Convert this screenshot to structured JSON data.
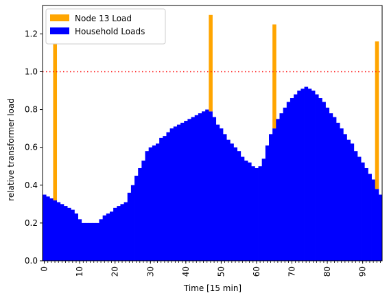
{
  "chart_data": {
    "type": "bar",
    "stacked": true,
    "title": "",
    "xlabel": "Time [15 min]",
    "ylabel": "relative transformer load",
    "xlim": [
      -0.5,
      95.5
    ],
    "ylim": [
      0.0,
      1.35
    ],
    "x": [
      0,
      1,
      2,
      3,
      4,
      5,
      6,
      7,
      8,
      9,
      10,
      11,
      12,
      13,
      14,
      15,
      16,
      17,
      18,
      19,
      20,
      21,
      22,
      23,
      24,
      25,
      26,
      27,
      28,
      29,
      30,
      31,
      32,
      33,
      34,
      35,
      36,
      37,
      38,
      39,
      40,
      41,
      42,
      43,
      44,
      45,
      46,
      47,
      48,
      49,
      50,
      51,
      52,
      53,
      54,
      55,
      56,
      57,
      58,
      59,
      60,
      61,
      62,
      63,
      64,
      65,
      66,
      67,
      68,
      69,
      70,
      71,
      72,
      73,
      74,
      75,
      76,
      77,
      78,
      79,
      80,
      81,
      82,
      83,
      84,
      85,
      86,
      87,
      88,
      89,
      90,
      91,
      92,
      93,
      94,
      95
    ],
    "xticks": [
      0,
      10,
      20,
      30,
      40,
      50,
      60,
      70,
      80,
      90
    ],
    "xtick_labels": [
      "0",
      "10",
      "20",
      "30",
      "40",
      "50",
      "60",
      "70",
      "80",
      "90"
    ],
    "yticks": [
      0.0,
      0.2,
      0.4,
      0.6,
      0.8,
      1.0,
      1.2
    ],
    "ytick_labels": [
      "0.0",
      "0.2",
      "0.4",
      "0.6",
      "0.8",
      "1.0",
      "1.2"
    ],
    "series": [
      {
        "name": "Household Loads",
        "color": "#0000ff",
        "values": [
          0.35,
          0.34,
          0.33,
          0.32,
          0.31,
          0.3,
          0.29,
          0.28,
          0.27,
          0.25,
          0.22,
          0.2,
          0.2,
          0.2,
          0.2,
          0.2,
          0.22,
          0.24,
          0.25,
          0.26,
          0.28,
          0.29,
          0.3,
          0.31,
          0.36,
          0.4,
          0.45,
          0.49,
          0.53,
          0.58,
          0.6,
          0.61,
          0.62,
          0.65,
          0.66,
          0.68,
          0.7,
          0.71,
          0.72,
          0.73,
          0.74,
          0.75,
          0.76,
          0.77,
          0.78,
          0.79,
          0.8,
          0.79,
          0.76,
          0.72,
          0.7,
          0.67,
          0.64,
          0.62,
          0.6,
          0.58,
          0.55,
          0.53,
          0.52,
          0.5,
          0.49,
          0.5,
          0.54,
          0.61,
          0.67,
          0.7,
          0.75,
          0.78,
          0.81,
          0.84,
          0.86,
          0.88,
          0.9,
          0.91,
          0.92,
          0.91,
          0.9,
          0.88,
          0.86,
          0.84,
          0.81,
          0.78,
          0.76,
          0.73,
          0.7,
          0.67,
          0.64,
          0.62,
          0.58,
          0.55,
          0.52,
          0.49,
          0.46,
          0.43,
          0.38,
          0.35
        ]
      },
      {
        "name": "Node 13 Load",
        "color": "#ffa500",
        "values": [
          0,
          0,
          0,
          0.83,
          0,
          0,
          0,
          0,
          0,
          0,
          0,
          0,
          0,
          0,
          0,
          0,
          0,
          0,
          0,
          0,
          0,
          0,
          0,
          0,
          0,
          0,
          0,
          0,
          0,
          0,
          0,
          0,
          0,
          0,
          0,
          0,
          0,
          0,
          0,
          0,
          0,
          0,
          0,
          0,
          0,
          0,
          0,
          0.51,
          0,
          0,
          0,
          0,
          0,
          0,
          0,
          0,
          0,
          0,
          0,
          0,
          0,
          0,
          0,
          0,
          0,
          0.55,
          0,
          0,
          0,
          0,
          0,
          0,
          0,
          0,
          0,
          0,
          0,
          0,
          0,
          0,
          0,
          0,
          0,
          0,
          0,
          0,
          0,
          0,
          0,
          0,
          0,
          0,
          0,
          0,
          0.78,
          0
        ]
      }
    ],
    "reference_line": {
      "y": 1.0,
      "style": "dotted",
      "color": "#ff0000"
    },
    "legend": {
      "placement": "top-left",
      "order": [
        "Node 13 Load",
        "Household Loads"
      ]
    }
  }
}
